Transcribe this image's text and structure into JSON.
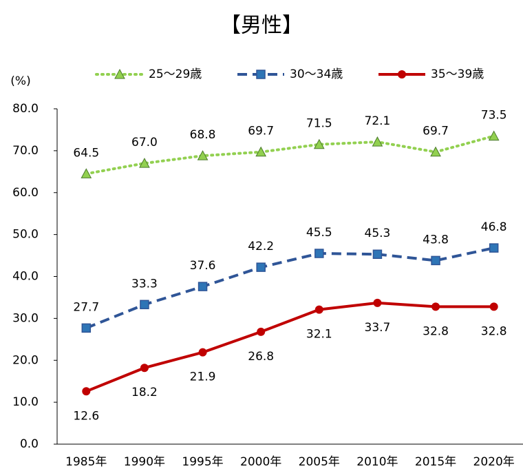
{
  "chart_data": {
    "type": "line",
    "title": "【男性】",
    "y_unit_label": "(%)",
    "categories": [
      "1985年",
      "1990年",
      "1995年",
      "2000年",
      "2005年",
      "2010年",
      "2015年",
      "2020年"
    ],
    "series": [
      {
        "name": "25～29歳",
        "color": "#92d050",
        "line_style": "dotted",
        "marker": "triangle",
        "values": [
          64.5,
          67.0,
          68.8,
          69.7,
          71.5,
          72.1,
          69.7,
          73.5
        ],
        "value_labels": [
          "64.5",
          "67.0",
          "68.8",
          "69.7",
          "71.5",
          "72.1",
          "69.7",
          "73.5"
        ],
        "label_position": "above"
      },
      {
        "name": "30～34歳",
        "color": "#2f5597",
        "line_style": "dashed",
        "marker": "square",
        "values": [
          27.7,
          33.3,
          37.6,
          42.2,
          45.5,
          45.3,
          43.8,
          46.8
        ],
        "value_labels": [
          "27.7",
          "33.3",
          "37.6",
          "42.2",
          "45.5",
          "45.3",
          "43.8",
          "46.8"
        ],
        "label_position": "above"
      },
      {
        "name": "35～39歳",
        "color": "#c00000",
        "line_style": "solid",
        "marker": "circle",
        "values": [
          12.6,
          18.2,
          21.9,
          26.8,
          32.1,
          33.7,
          32.8,
          32.8
        ],
        "value_labels": [
          "12.6",
          "18.2",
          "21.9",
          "26.8",
          "32.1",
          "33.7",
          "32.8",
          "32.8"
        ],
        "label_position": "below"
      }
    ],
    "ylim": [
      0,
      80
    ],
    "yticks": [
      {
        "value": 0,
        "label": "0.0"
      },
      {
        "value": 10,
        "label": "10.0"
      },
      {
        "value": 20,
        "label": "20.0"
      },
      {
        "value": 30,
        "label": "30.0"
      },
      {
        "value": 40,
        "label": "40.0"
      },
      {
        "value": 50,
        "label": "50.0"
      },
      {
        "value": 60,
        "label": "60.0"
      },
      {
        "value": 70,
        "label": "70.0"
      },
      {
        "value": 80,
        "label": "80.0"
      }
    ],
    "grid": false,
    "legend_position": "top"
  }
}
